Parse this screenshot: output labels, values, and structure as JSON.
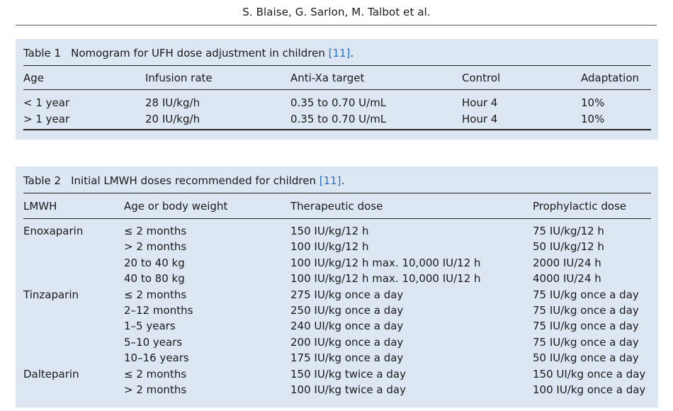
{
  "running_head": "S. Blaise, G. Sarlon, M. Talbot et al.",
  "table1": {
    "number": "Table 1",
    "caption": "Nomogram for UFH dose adjustment in children ",
    "ref": "[11]",
    "ref_suffix": ".",
    "headers": [
      "Age",
      "Infusion rate",
      "Anti-Xa target",
      "Control",
      "Adaptation"
    ],
    "rows": [
      [
        "< 1 year",
        "28 IU/kg/h",
        "0.35 to 0.70 U/mL",
        "Hour 4",
        "10%"
      ],
      [
        "> 1 year",
        "20 IU/kg/h",
        "0.35 to 0.70 U/mL",
        "Hour 4",
        "10%"
      ]
    ]
  },
  "table2": {
    "number": "Table 2",
    "caption": "Initial LMWH doses recommended for children ",
    "ref": "[11]",
    "ref_suffix": ".",
    "headers": [
      "LMWH",
      "Age or body weight",
      "Therapeutic dose",
      "Prophylactic dose"
    ],
    "rows": [
      [
        "Enoxaparin",
        "≤ 2 months",
        "150 IU/kg/12 h",
        "75 IU/kg/12 h"
      ],
      [
        "",
        "> 2 months",
        "100 IU/kg/12 h",
        "50 IU/kg/12 h"
      ],
      [
        "",
        "20 to 40 kg",
        "100 IU/kg/12 h max. 10,000 IU/12 h",
        "2000 IU/24 h"
      ],
      [
        "",
        "40 to 80 kg",
        "100 IU/kg/12 h max. 10,000 IU/12 h",
        "4000 IU/24 h"
      ],
      [
        "Tinzaparin",
        "≤ 2 months",
        "275 IU/kg once a day",
        "75 IU/kg once a day"
      ],
      [
        "",
        "2–12 months",
        "250 IU/kg once a day",
        "75 IU/kg once a day"
      ],
      [
        "",
        "1–5 years",
        "240 UI/kg once a day",
        "75 IU/kg once a day"
      ],
      [
        "",
        "5–10 years",
        "200 IU/kg once a day",
        "75 IU/kg once a day"
      ],
      [
        "",
        "10–16 years",
        "175 IU/kg once a day",
        "50 IU/kg once a day"
      ],
      [
        "Dalteparin",
        "≤ 2 months",
        "150 IU/kg twice a day",
        "150 UI/kg once a day"
      ],
      [
        "",
        "> 2 months",
        "100 IU/kg twice a day",
        "100 IU/kg once a day"
      ]
    ]
  }
}
